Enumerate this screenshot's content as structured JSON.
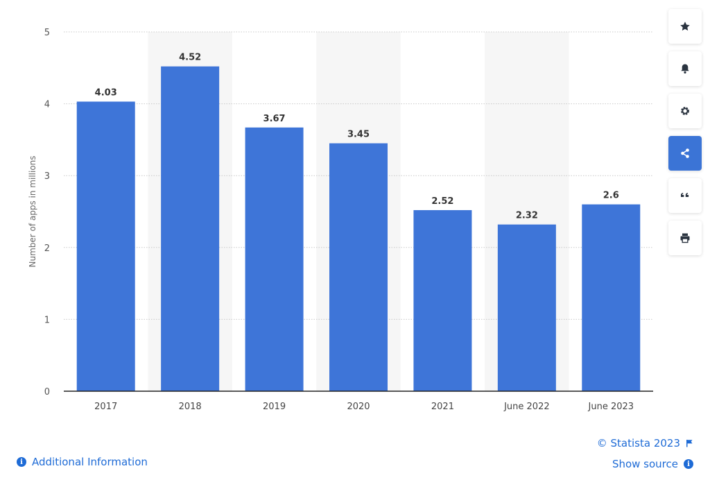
{
  "chart_data": {
    "type": "bar",
    "categories": [
      "2017",
      "2018",
      "2019",
      "2020",
      "2021",
      "June 2022",
      "June 2023"
    ],
    "values": [
      4.03,
      4.52,
      3.67,
      3.45,
      2.52,
      2.32,
      2.6
    ],
    "value_labels": [
      "4.03",
      "4.52",
      "3.67",
      "3.45",
      "2.52",
      "2.32",
      "2.6"
    ],
    "ylabel": "Number of apps in millions",
    "ylim": [
      0,
      5
    ],
    "yticks": [
      "0",
      "1",
      "2",
      "3",
      "4",
      "5"
    ],
    "grid": true,
    "bar_color": "#3e75d8",
    "shade_color": "#f6f6f6"
  },
  "toolbar": {
    "buttons": [
      {
        "icon": "star-icon",
        "active": false
      },
      {
        "icon": "bell-icon",
        "active": false
      },
      {
        "icon": "gear-icon",
        "active": false
      },
      {
        "icon": "share-icon",
        "active": true
      },
      {
        "icon": "quote-icon",
        "active": false
      },
      {
        "icon": "print-icon",
        "active": false
      }
    ],
    "accent": "#3b74d6"
  },
  "footer": {
    "additional_info": "Additional Information",
    "credits": "© Statista 2023",
    "show_source": "Show source",
    "info_glyph": "i",
    "link_color": "#1e6bd6"
  }
}
